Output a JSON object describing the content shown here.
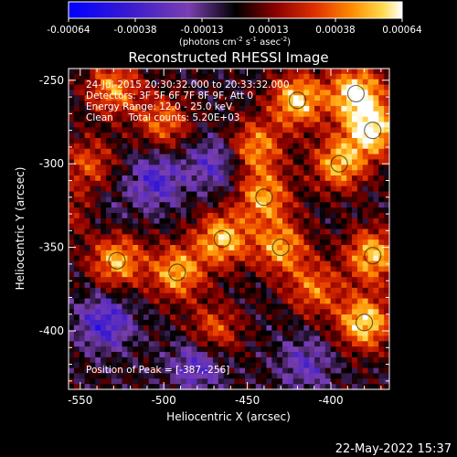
{
  "chart_data": {
    "type": "heatmap",
    "title": "Reconstructed RHESSI Image",
    "xlabel": "Heliocentric X (arcsec)",
    "ylabel": "Heliocentric Y (arcsec)",
    "xlim": [
      -557,
      -365
    ],
    "ylim": [
      -435,
      -243
    ],
    "x_ticks": [
      -550,
      -500,
      -450,
      -400
    ],
    "y_ticks": [
      -250,
      -300,
      -350,
      -400
    ],
    "colorbar": {
      "min": -0.00064,
      "max": 0.00064,
      "ticks": [
        "-0.00064",
        "-0.00038",
        "-0.00013",
        "0.00013",
        "0.00038",
        "0.00064"
      ],
      "unit_label": "(photons cm",
      "unit_sup1": "-2",
      "unit_mid": " s",
      "unit_sup2": "-1",
      "unit_mid2": " asec",
      "unit_sup3": "-2",
      "unit_end": ")",
      "colors": [
        "#0000ff",
        "#3a1ad0",
        "#7a3fb0",
        "#000000",
        "#8a0000",
        "#e03000",
        "#ff8c00",
        "#ffd94a",
        "#ffffff"
      ]
    },
    "annotations": [
      "24-Jul-2015 20:30:32.000 to 20:33:32.000",
      "Detectors: 3F 5F 6F 7F 8F 9F, Att 0",
      "Energy Range: 12.0 - 25.0 keV",
      "Clean     Total counts: 5.20E+03"
    ],
    "peak_label": "Position of Peak = [-387,-256]",
    "peak": [
      -387,
      -256
    ],
    "blobs": [
      {
        "x": -385,
        "y": -258,
        "amp": 1.0
      },
      {
        "x": -375,
        "y": -280,
        "amp": 0.95
      },
      {
        "x": -420,
        "y": -262,
        "amp": 0.9
      },
      {
        "x": -395,
        "y": -300,
        "amp": 0.8
      },
      {
        "x": -445,
        "y": -290,
        "amp": 0.7
      },
      {
        "x": -440,
        "y": -320,
        "amp": 0.75
      },
      {
        "x": -465,
        "y": -345,
        "amp": 0.85
      },
      {
        "x": -430,
        "y": -350,
        "amp": 0.75
      },
      {
        "x": -380,
        "y": -395,
        "amp": 0.95
      },
      {
        "x": -375,
        "y": -355,
        "amp": 0.85
      },
      {
        "x": -410,
        "y": -375,
        "amp": 0.6
      },
      {
        "x": -528,
        "y": -358,
        "amp": 0.8
      },
      {
        "x": -492,
        "y": -365,
        "amp": 0.8
      },
      {
        "x": -530,
        "y": -255,
        "amp": 0.7
      },
      {
        "x": -500,
        "y": -275,
        "amp": 0.6
      },
      {
        "x": -545,
        "y": -300,
        "amp": 0.5
      },
      {
        "x": -550,
        "y": -330,
        "amp": 0.45
      },
      {
        "x": -470,
        "y": -400,
        "amp": 0.55
      },
      {
        "x": -505,
        "y": -310,
        "amp": -0.55
      },
      {
        "x": -535,
        "y": -395,
        "amp": -0.6
      },
      {
        "x": -480,
        "y": -420,
        "amp": -0.5
      },
      {
        "x": -470,
        "y": -300,
        "amp": -0.45
      },
      {
        "x": -540,
        "y": -330,
        "amp": -0.3
      },
      {
        "x": -415,
        "y": -420,
        "amp": -0.4
      }
    ]
  },
  "footer": {
    "timestamp": "22-May-2022 15:37"
  }
}
